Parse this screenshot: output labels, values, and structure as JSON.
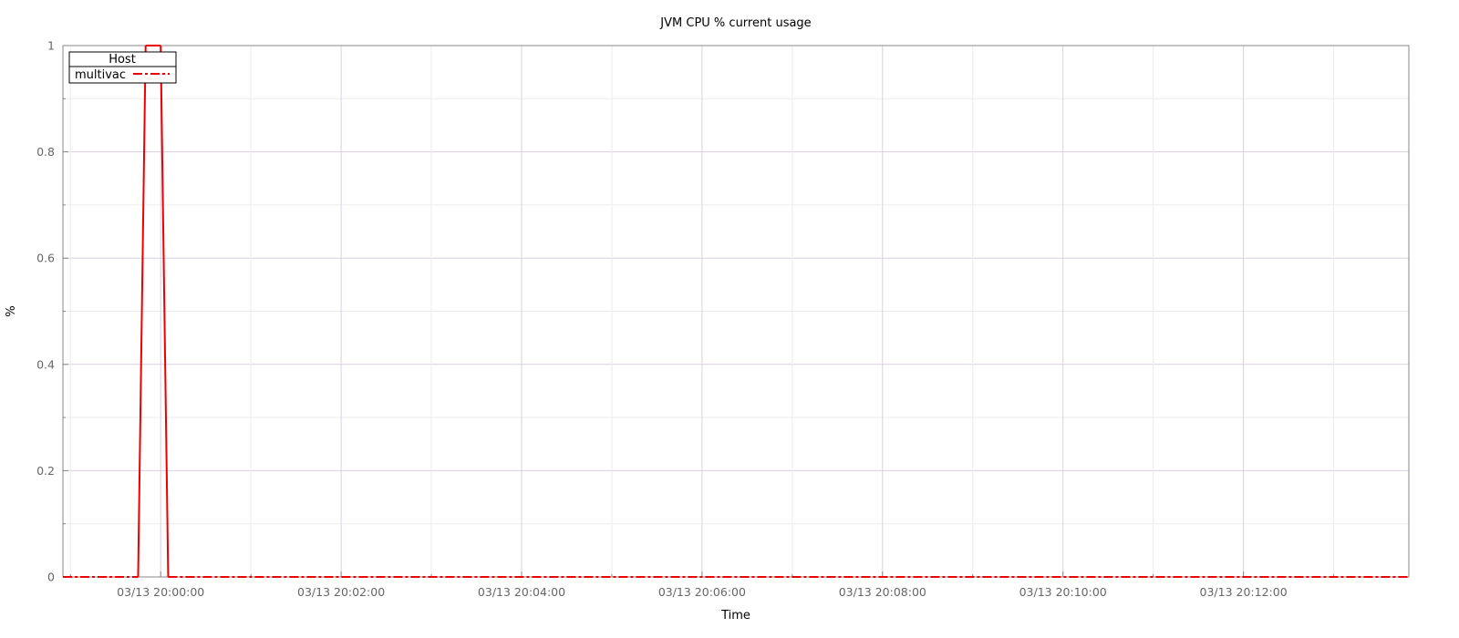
{
  "chart_data": {
    "type": "line",
    "title": "JVM CPU % current usage",
    "xlabel": "Time",
    "ylabel": "%",
    "ylim": [
      0,
      1
    ],
    "xlim": [
      "03/13 19:58:55",
      "03/13 20:13:50"
    ],
    "yticks": [
      0,
      0.2,
      0.4,
      0.6,
      0.8,
      1
    ],
    "ytick_labels": [
      "0",
      "0.2",
      "0.4",
      "0.6",
      "0.8",
      "1"
    ],
    "xticks": [
      "03/13 20:00:00",
      "03/13 20:02:00",
      "03/13 20:04:00",
      "03/13 20:06:00",
      "03/13 20:08:00",
      "03/13 20:10:00",
      "03/13 20:12:00"
    ],
    "xtick_labels": [
      "03/13 20:00:00",
      "03/13 20:02:00",
      "03/13 20:04:00",
      "03/13 20:06:00",
      "03/13 20:08:00",
      "03/13 20:10:00",
      "03/13 20:12:00"
    ],
    "grid": true,
    "legend": {
      "title": "Host",
      "placement": "top-left"
    },
    "series": [
      {
        "name": "multivac",
        "color": "#ee0000",
        "style": "dash-dot",
        "points": [
          [
            "03/13 19:58:55",
            0
          ],
          [
            "03/13 19:59:45",
            0
          ],
          [
            "03/13 19:59:50",
            1
          ],
          [
            "03/13 20:00:00",
            1
          ],
          [
            "03/13 20:00:05",
            0
          ],
          [
            "03/13 20:13:50",
            0
          ]
        ]
      }
    ]
  }
}
